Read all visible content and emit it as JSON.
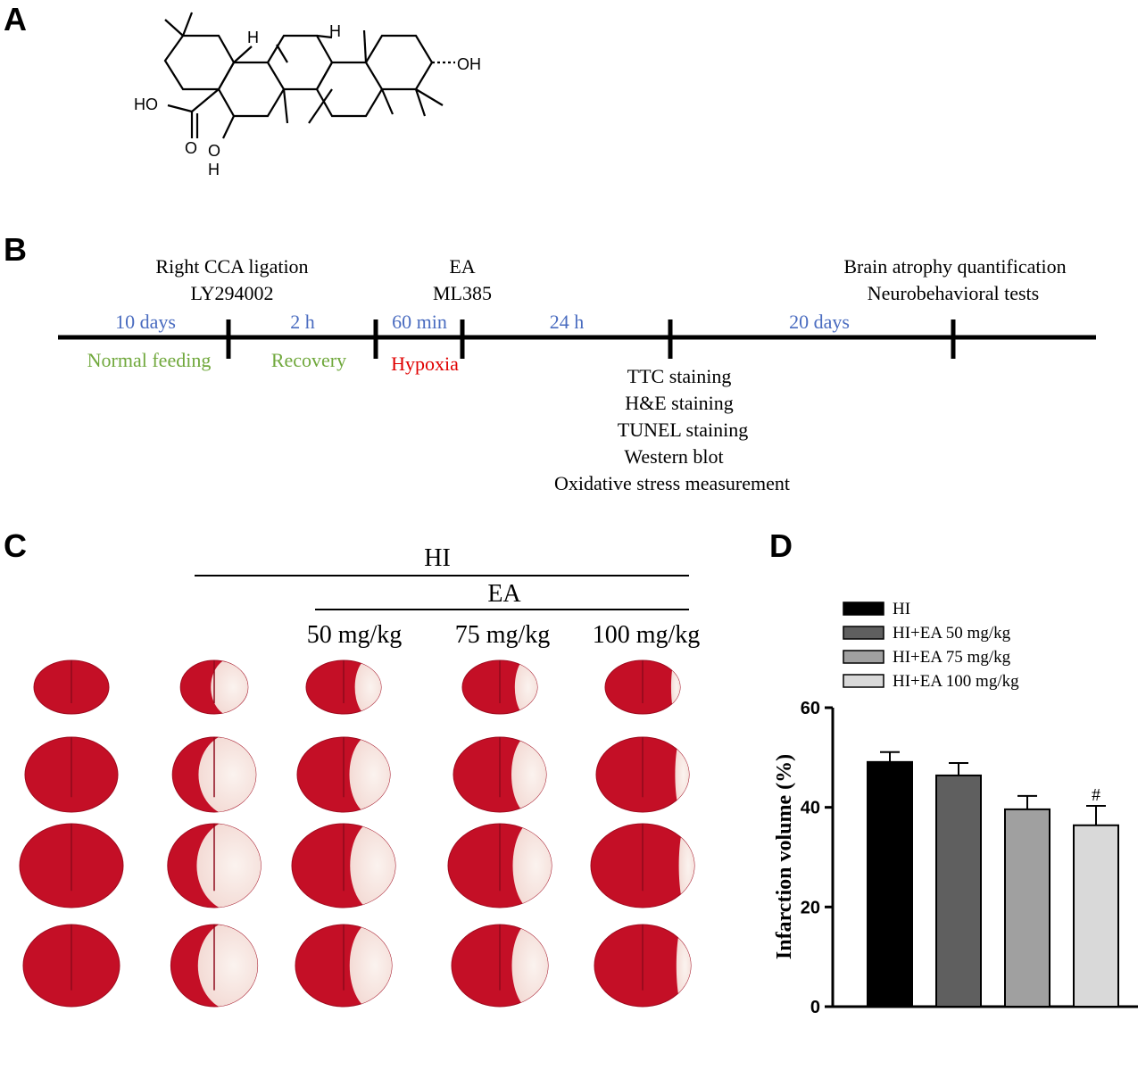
{
  "panels": {
    "a": "A",
    "b": "B",
    "c": "C",
    "d": "D"
  },
  "structure": {
    "atoms": [
      "H",
      "H",
      "OH",
      "HO",
      "O",
      "O",
      "H"
    ]
  },
  "timeline": {
    "durations": [
      "10 days",
      "2 h",
      "60 min",
      "24 h",
      "20 days"
    ],
    "phases": [
      "Normal feeding",
      "Recovery",
      "Hypoxia"
    ],
    "events": [
      [
        "Right CCA ligation",
        "LY294002"
      ],
      [
        "EA",
        "ML385"
      ],
      [
        "Brain atrophy quantification",
        "Neurobehavioral tests"
      ]
    ],
    "measurements": [
      "TTC staining",
      "H&E staining",
      "TUNEL staining",
      "Western blot",
      "Oxidative stress measurement"
    ]
  },
  "slices": {
    "group": "HI",
    "treatment": "EA",
    "doses": [
      "50 mg/kg",
      "75 mg/kg",
      "100 mg/kg"
    ]
  },
  "chart_data": {
    "type": "bar",
    "y_label": "Infarction volume (%)",
    "categories": [
      "HI",
      "HI+EA 50 mg/kg",
      "HI+EA 75 mg/kg",
      "HI+EA 100 mg/kg"
    ],
    "values": [
      49.1,
      46.4,
      39.6,
      36.4
    ],
    "errors": [
      2.0,
      2.5,
      2.7,
      3.9
    ],
    "colors": [
      "#000000",
      "#5f5f5f",
      "#a0a0a0",
      "#d9d9d9"
    ],
    "significance": [
      null,
      null,
      null,
      "#"
    ],
    "ylim": [
      0,
      60
    ],
    "yticks": [
      0,
      20,
      40,
      60
    ]
  }
}
